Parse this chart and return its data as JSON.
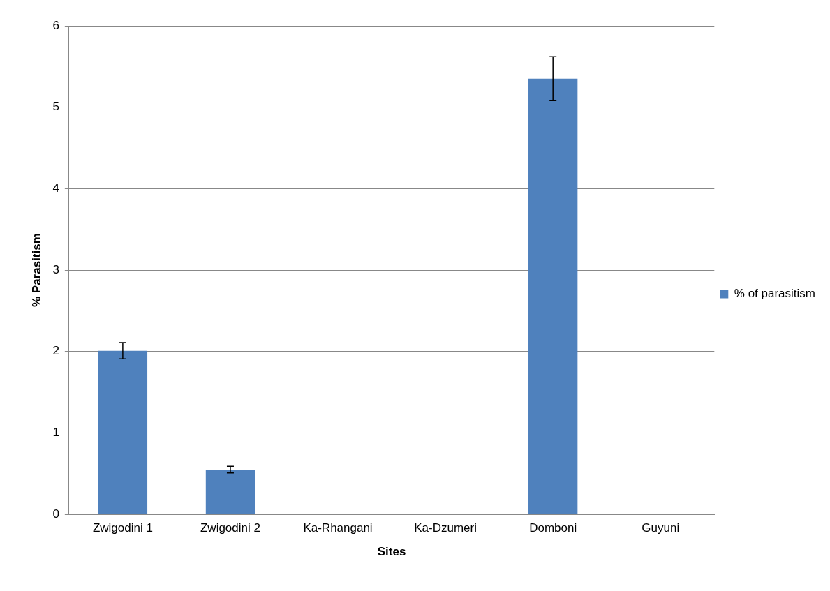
{
  "chart_data": {
    "type": "bar",
    "xlabel": "Sites",
    "ylabel": "% Parasitism",
    "categories": [
      "Zwigodini 1",
      "Zwigodini 2",
      "Ka-Rhangani",
      "Ka-Dzumeri",
      "Domboni",
      "Guyuni"
    ],
    "series": [
      {
        "name": "% of parasitism",
        "color": "#4f81bd",
        "values": [
          2.01,
          0.55,
          0,
          0,
          5.35,
          0
        ],
        "errors": [
          0.1,
          0.04,
          null,
          null,
          0.27,
          null
        ]
      }
    ],
    "ylim": [
      0,
      6
    ],
    "yticks": [
      0,
      1,
      2,
      3,
      4,
      5,
      6
    ],
    "grid": "y",
    "legend": "right"
  }
}
